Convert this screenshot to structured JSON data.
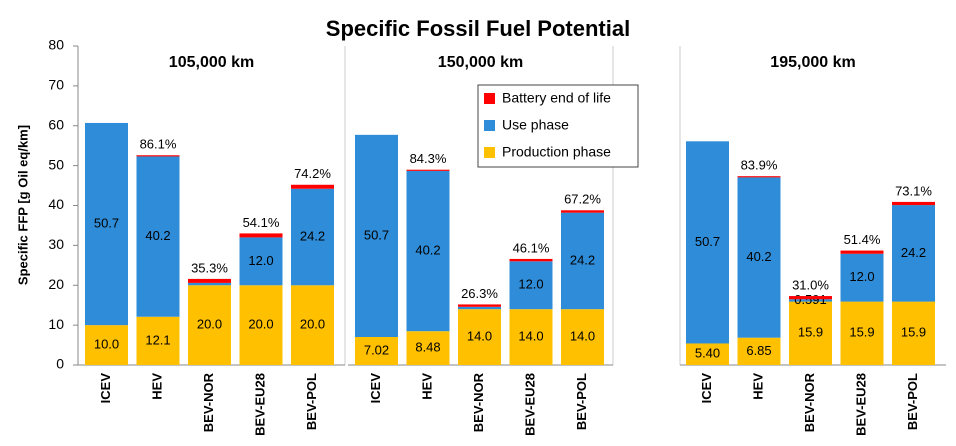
{
  "chart_data": [
    {
      "type": "bar",
      "stacked": true,
      "title": "Specific Fossil Fuel Potential",
      "y_label": "Specific FFP [g Oil eq/km]",
      "ylim": [
        0,
        80
      ],
      "yticks": [
        0,
        10,
        20,
        30,
        40,
        50,
        60,
        70,
        80
      ],
      "subtitle": "105,000 km",
      "categories": [
        "ICEV",
        "HEV",
        "BEV-NOR",
        "BEV-EU28",
        "BEV-POL"
      ],
      "series": [
        {
          "name": "Production phase",
          "color": "#ffc000",
          "values": [
            10.0,
            12.1,
            20.0,
            20.0,
            20.0
          ],
          "value_labels": [
            "10.0",
            "12.1",
            "20.0",
            "20.0",
            "20.0"
          ]
        },
        {
          "name": "Use phase",
          "color": "#2f8cd8",
          "values": [
            50.7,
            40.2,
            0.591,
            12.0,
            24.2
          ],
          "value_labels": [
            "50.7",
            "40.2",
            null,
            "12.0",
            "24.2"
          ]
        },
        {
          "name": "Battery end of life",
          "color": "#ff0000",
          "values": [
            0,
            0.3,
            1.0,
            1.0,
            1.0
          ]
        }
      ],
      "annotations": [
        null,
        "86.1%",
        "35.3%",
        "54.1%",
        "74.2%"
      ]
    },
    {
      "type": "bar",
      "stacked": true,
      "subtitle": "150,000 km",
      "legend": "upper right",
      "categories": [
        "ICEV",
        "HEV",
        "BEV-NOR",
        "BEV-EU28",
        "BEV-POL"
      ],
      "series": [
        {
          "name": "Production phase",
          "color": "#ffc000",
          "values": [
            7.02,
            8.48,
            14.0,
            14.0,
            14.0
          ],
          "value_labels": [
            "7.02",
            "8.48",
            "14.0",
            "14.0",
            "14.0"
          ]
        },
        {
          "name": "Use phase",
          "color": "#2f8cd8",
          "values": [
            50.7,
            40.2,
            0.591,
            12.0,
            24.2
          ],
          "value_labels": [
            "50.7",
            "40.2",
            null,
            "12.0",
            "24.2"
          ]
        },
        {
          "name": "Battery end of life",
          "color": "#ff0000",
          "values": [
            0,
            0.3,
            0.6,
            0.6,
            0.6
          ]
        }
      ],
      "annotations": [
        null,
        "84.3%",
        "26.3%",
        "46.1%",
        "67.2%"
      ]
    },
    {
      "type": "bar",
      "stacked": true,
      "subtitle": "195,000 km",
      "categories": [
        "ICEV",
        "HEV",
        "BEV-NOR",
        "BEV-EU28",
        "BEV-POL"
      ],
      "series": [
        {
          "name": "Production phase",
          "color": "#ffc000",
          "values": [
            5.4,
            6.85,
            15.9,
            15.9,
            15.9
          ],
          "value_labels": [
            "5.40",
            "6.85",
            "15.9",
            "15.9",
            "15.9"
          ]
        },
        {
          "name": "Use phase",
          "color": "#2f8cd8",
          "values": [
            50.7,
            40.2,
            0.591,
            12.0,
            24.2
          ],
          "value_labels": [
            "50.7",
            "40.2",
            "0.591",
            "12.0",
            "24.2"
          ]
        },
        {
          "name": "Battery end of life",
          "color": "#ff0000",
          "values": [
            0,
            0.3,
            0.8,
            0.8,
            0.8
          ]
        }
      ],
      "annotations": [
        null,
        "83.9%",
        "31.0%",
        "51.4%",
        "73.1%"
      ]
    }
  ]
}
